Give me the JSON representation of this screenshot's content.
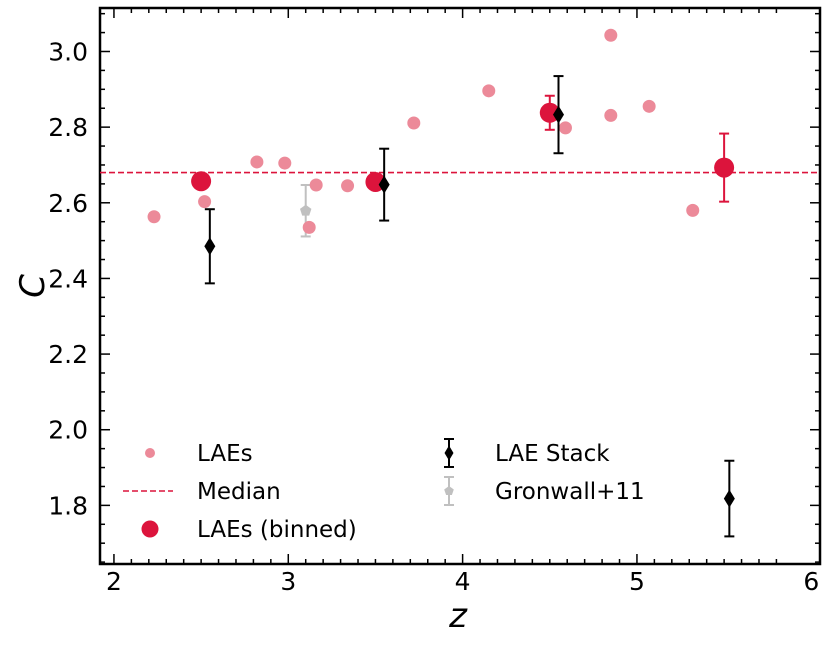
{
  "chart_data": {
    "type": "scatter",
    "title": "",
    "xlabel": "z",
    "ylabel": "C",
    "xlim": [
      1.92,
      6.05
    ],
    "ylim": [
      1.645,
      3.115
    ],
    "xticks": [
      2,
      3,
      4,
      5,
      6
    ],
    "yticks": [
      1.8,
      2.0,
      2.2,
      2.4,
      2.6,
      2.8,
      3.0
    ],
    "xtick_labels": [
      "2",
      "3",
      "4",
      "5",
      "6"
    ],
    "ytick_labels": [
      "1.8",
      "2.0",
      "2.2",
      "2.4",
      "2.6",
      "2.8",
      "3.0"
    ],
    "grid": false,
    "legend_position": "bottom-left, two columns",
    "colors": {
      "laes": "#ec8a99",
      "binned": "#dc143c",
      "median": "#dc143c",
      "stack": "#000000",
      "gronwall": "#c0c0c0"
    },
    "median": 2.68,
    "series": [
      {
        "name": "LAEs",
        "marker": "small-circle",
        "points": [
          {
            "x": 2.23,
            "y": 2.563
          },
          {
            "x": 2.52,
            "y": 2.603
          },
          {
            "x": 2.82,
            "y": 2.708
          },
          {
            "x": 2.98,
            "y": 2.705
          },
          {
            "x": 3.12,
            "y": 2.535
          },
          {
            "x": 3.16,
            "y": 2.647
          },
          {
            "x": 3.34,
            "y": 2.645
          },
          {
            "x": 3.72,
            "y": 2.811
          },
          {
            "x": 4.15,
            "y": 2.896
          },
          {
            "x": 4.59,
            "y": 2.798
          },
          {
            "x": 4.85,
            "y": 3.043
          },
          {
            "x": 4.85,
            "y": 2.831
          },
          {
            "x": 5.07,
            "y": 2.855
          },
          {
            "x": 5.32,
            "y": 2.58
          }
        ]
      },
      {
        "name": "LAEs (binned)",
        "marker": "large-circle",
        "points": [
          {
            "x": 2.5,
            "y": 2.657,
            "err": 0
          },
          {
            "x": 3.5,
            "y": 2.655,
            "err": 0
          },
          {
            "x": 4.5,
            "y": 2.838,
            "err": 0.045
          },
          {
            "x": 5.5,
            "y": 2.693,
            "err": 0.09
          }
        ]
      },
      {
        "name": "LAE Stack",
        "marker": "diamond",
        "points": [
          {
            "x": 2.55,
            "y": 2.485,
            "err": 0.098
          },
          {
            "x": 3.55,
            "y": 2.648,
            "err": 0.095
          },
          {
            "x": 4.55,
            "y": 2.833,
            "err": 0.102
          },
          {
            "x": 5.53,
            "y": 1.818,
            "err": 0.1
          }
        ]
      },
      {
        "name": "Gronwall+11",
        "marker": "pentagon",
        "points": [
          {
            "x": 3.1,
            "y": 2.579,
            "err": 0.068
          }
        ]
      }
    ],
    "legend": {
      "left": [
        "LAEs",
        "Median",
        "LAEs (binned)"
      ],
      "right": [
        "LAE Stack",
        "Gronwall+11"
      ]
    }
  }
}
